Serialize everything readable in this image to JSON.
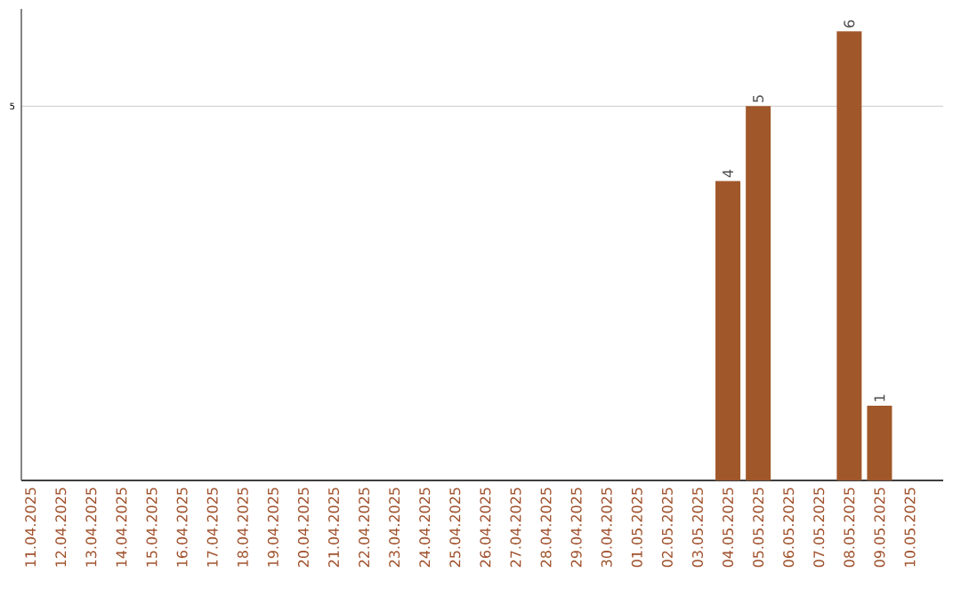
{
  "chart_data": {
    "type": "bar",
    "categories": [
      "11.04.2025",
      "12.04.2025",
      "13.04.2025",
      "14.04.2025",
      "15.04.2025",
      "16.04.2025",
      "17.04.2025",
      "18.04.2025",
      "19.04.2025",
      "20.04.2025",
      "21.04.2025",
      "22.04.2025",
      "23.04.2025",
      "24.04.2025",
      "25.04.2025",
      "26.04.2025",
      "27.04.2025",
      "28.04.2025",
      "29.04.2025",
      "30.04.2025",
      "01.05.2025",
      "02.05.2025",
      "03.05.2025",
      "04.05.2025",
      "05.05.2025",
      "06.05.2025",
      "07.05.2025",
      "08.05.2025",
      "09.05.2025",
      "10.05.2025"
    ],
    "values": [
      null,
      null,
      null,
      null,
      null,
      null,
      null,
      null,
      null,
      null,
      null,
      null,
      null,
      null,
      null,
      null,
      null,
      null,
      null,
      null,
      null,
      null,
      null,
      4,
      5,
      null,
      null,
      6,
      1,
      null
    ],
    "color": "#a0572a",
    "ylim": [
      0,
      6.3
    ],
    "yticks": [
      5
    ],
    "grid": "y",
    "data_labels": true
  }
}
